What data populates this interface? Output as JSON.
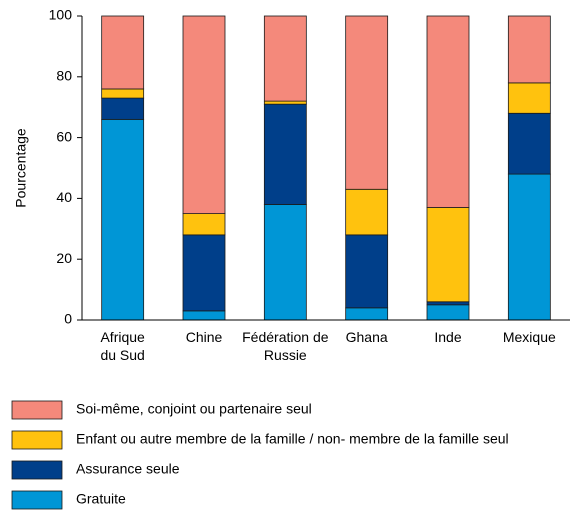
{
  "chart_data": {
    "type": "stacked_bar",
    "ylabel": "Pourcentage",
    "categories": [
      "Afrique du Sud",
      "Chine",
      "Fédération de Russie",
      "Ghana",
      "Inde",
      "Mexique"
    ],
    "series": [
      {
        "name": "Gratuite",
        "color": "#0096d6",
        "values": [
          66,
          3,
          38,
          4,
          5,
          48
        ]
      },
      {
        "name": "Assurance seule",
        "color": "#003f8a",
        "values": [
          7,
          25,
          33,
          24,
          1,
          20
        ]
      },
      {
        "name": "Enfant ou autre membre de la famille / non- membre de la famille seul",
        "color": "#ffc20e",
        "values": [
          3,
          7,
          1,
          15,
          31,
          10
        ]
      },
      {
        "name": "Soi-même, conjoint ou partenaire seul",
        "color": "#f4897b",
        "values": [
          24,
          65,
          28,
          57,
          63,
          22
        ]
      }
    ],
    "ylim": [
      0,
      100
    ],
    "yticks": [
      0,
      20,
      40,
      60,
      80,
      100
    ]
  }
}
